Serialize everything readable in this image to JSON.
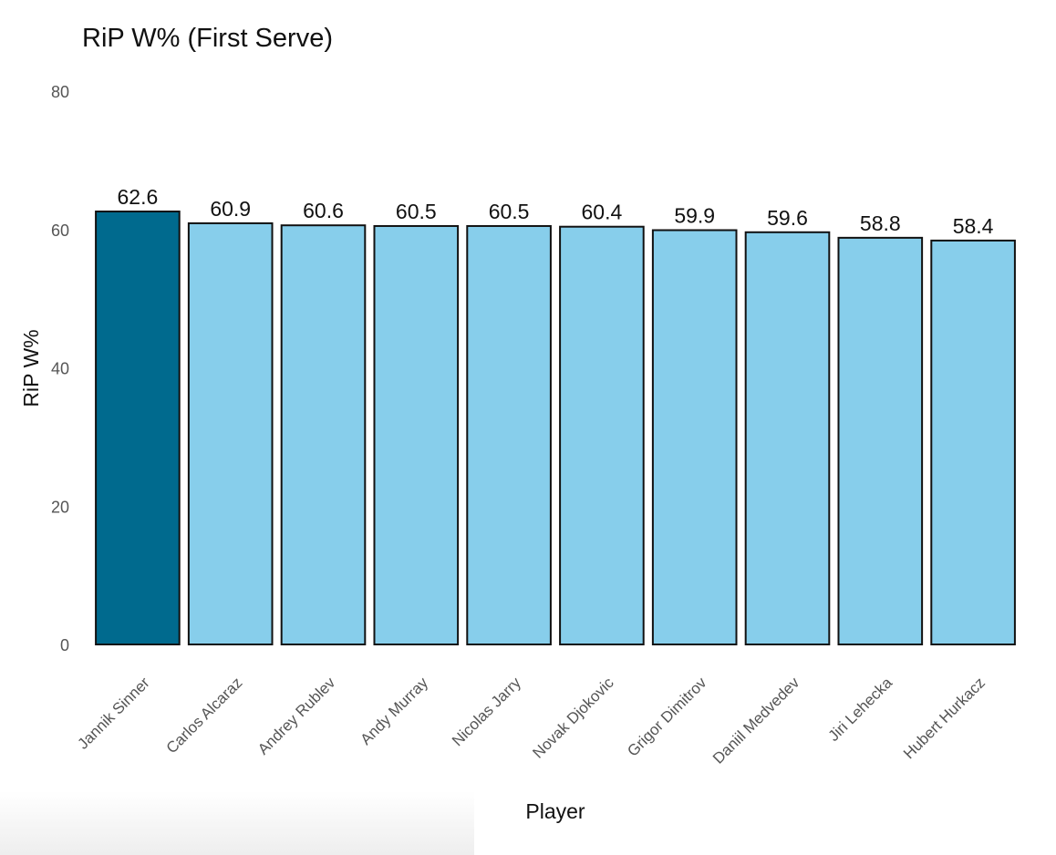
{
  "chart_data": {
    "type": "bar",
    "title": "RiP W% (First Serve)",
    "xlabel": "Player",
    "ylabel": "RiP W%",
    "ylim": [
      0,
      80
    ],
    "yticks": [
      0,
      20,
      40,
      60,
      80
    ],
    "grid": false,
    "categories": [
      "Jannik Sinner",
      "Carlos Alcaraz",
      "Andrey Rublev",
      "Andy Murray",
      "Nicolas Jarry",
      "Novak Djokovic",
      "Grigor Dimitrov",
      "Daniil Medvedev",
      "Jiri Lehecka",
      "Hubert Hurkacz"
    ],
    "values": [
      62.6,
      60.9,
      60.6,
      60.5,
      60.5,
      60.4,
      59.9,
      59.6,
      58.8,
      58.4
    ],
    "value_labels": [
      "62.6",
      "60.9",
      "60.6",
      "60.5",
      "60.5",
      "60.4",
      "59.9",
      "59.6",
      "58.8",
      "58.4"
    ],
    "highlight_index": 0,
    "colors": {
      "highlight": "#006a8e",
      "default": "#87ceeb",
      "outline": "#111111"
    }
  }
}
